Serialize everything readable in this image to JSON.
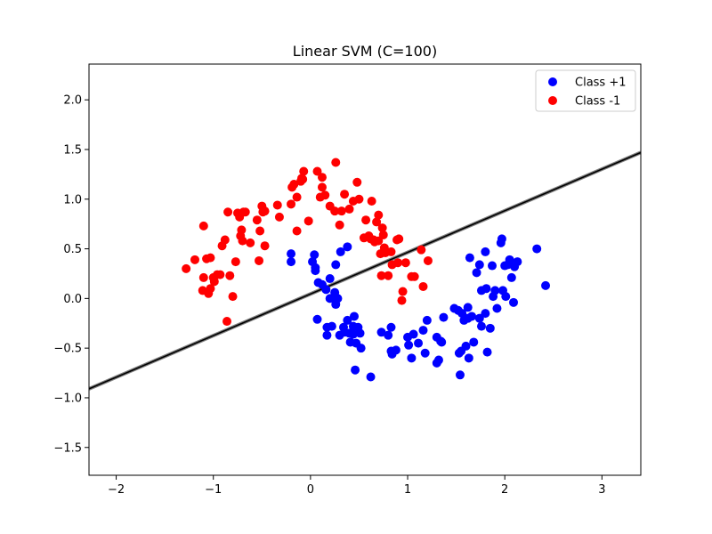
{
  "chart_data": {
    "type": "scatter",
    "title": "Linear SVM (C=100)",
    "xlabel": "",
    "ylabel": "",
    "xlim": [
      -2.28,
      3.4
    ],
    "ylim": [
      -1.78,
      2.36
    ],
    "xticks": [
      -2,
      -1,
      0,
      1,
      2,
      3
    ],
    "yticks": [
      -1.5,
      -1.0,
      -0.5,
      0.0,
      0.5,
      1.0,
      1.5,
      2.0
    ],
    "xtick_labels": [
      "−2",
      "−1",
      "0",
      "1",
      "2",
      "3"
    ],
    "ytick_labels": [
      "−1.5",
      "−1.0",
      "−0.5",
      "0.0",
      "0.5",
      "1.0",
      "1.5",
      "2.0"
    ],
    "grid": false,
    "legend_position": "top-right",
    "decision_boundary": {
      "label": "",
      "color": "#000000",
      "points": [
        [
          -2.28,
          -0.91
        ],
        [
          3.4,
          1.47
        ]
      ]
    },
    "series": [
      {
        "name": "Class +1",
        "color": "#0000ff",
        "points": [
          [
            -0.2,
            0.45
          ],
          [
            -0.2,
            0.37
          ],
          [
            0.02,
            0.37
          ],
          [
            0.04,
            0.44
          ],
          [
            0.05,
            0.31
          ],
          [
            0.05,
            0.28
          ],
          [
            0.08,
            0.16
          ],
          [
            0.12,
            0.14
          ],
          [
            0.16,
            0.09
          ],
          [
            0.2,
            0.2
          ],
          [
            0.25,
            0.06
          ],
          [
            0.26,
            0.34
          ],
          [
            0.31,
            0.47
          ],
          [
            0.38,
            0.52
          ],
          [
            0.07,
            -0.21
          ],
          [
            0.17,
            -0.29
          ],
          [
            0.17,
            -0.37
          ],
          [
            0.2,
            0.0
          ],
          [
            0.22,
            -0.28
          ],
          [
            0.26,
            -0.06
          ],
          [
            0.28,
            0.0
          ],
          [
            0.3,
            -0.37
          ],
          [
            0.34,
            -0.29
          ],
          [
            0.35,
            -0.34
          ],
          [
            0.38,
            -0.22
          ],
          [
            0.4,
            -0.35
          ],
          [
            0.41,
            -0.44
          ],
          [
            0.44,
            -0.28
          ],
          [
            0.44,
            -0.36
          ],
          [
            0.45,
            -0.18
          ],
          [
            0.46,
            -0.72
          ],
          [
            0.47,
            -0.45
          ],
          [
            0.49,
            -0.29
          ],
          [
            0.52,
            -0.5
          ],
          [
            0.51,
            -0.35
          ],
          [
            0.62,
            -0.79
          ],
          [
            0.73,
            -0.34
          ],
          [
            0.8,
            -0.37
          ],
          [
            0.83,
            -0.53
          ],
          [
            0.83,
            -0.29
          ],
          [
            0.84,
            -0.56
          ],
          [
            0.88,
            -0.52
          ],
          [
            1.0,
            -0.39
          ],
          [
            1.01,
            -0.47
          ],
          [
            1.04,
            -0.6
          ],
          [
            1.06,
            -0.36
          ],
          [
            1.11,
            -0.45
          ],
          [
            1.16,
            -0.32
          ],
          [
            1.18,
            -0.55
          ],
          [
            1.2,
            -0.22
          ],
          [
            1.3,
            -0.39
          ],
          [
            1.3,
            -0.65
          ],
          [
            1.32,
            -0.62
          ],
          [
            1.34,
            -0.43
          ],
          [
            1.35,
            -0.44
          ],
          [
            1.37,
            -0.19
          ],
          [
            1.48,
            -0.1
          ],
          [
            1.52,
            -0.12
          ],
          [
            1.53,
            -0.55
          ],
          [
            1.54,
            -0.77
          ],
          [
            1.55,
            -0.53
          ],
          [
            1.56,
            -0.15
          ],
          [
            1.58,
            -0.22
          ],
          [
            1.6,
            -0.48
          ],
          [
            1.62,
            -0.09
          ],
          [
            1.62,
            -0.2
          ],
          [
            1.63,
            -0.6
          ],
          [
            1.64,
            0.41
          ],
          [
            1.66,
            -0.18
          ],
          [
            1.68,
            -0.44
          ],
          [
            1.71,
            0.26
          ],
          [
            1.74,
            0.34
          ],
          [
            1.76,
            -0.28
          ],
          [
            1.76,
            0.08
          ],
          [
            1.8,
            0.47
          ],
          [
            1.81,
            0.1
          ],
          [
            1.8,
            -0.15
          ],
          [
            1.82,
            -0.54
          ],
          [
            1.85,
            -0.3
          ],
          [
            1.87,
            0.33
          ],
          [
            1.88,
            0.02
          ],
          [
            1.9,
            0.08
          ],
          [
            1.92,
            -0.1
          ],
          [
            1.96,
            0.56
          ],
          [
            1.97,
            0.6
          ],
          [
            1.98,
            0.08
          ],
          [
            2.0,
            0.33
          ],
          [
            2.01,
            0.02
          ],
          [
            2.05,
            0.39
          ],
          [
            2.07,
            0.21
          ],
          [
            2.09,
            -0.04
          ],
          [
            2.1,
            0.32
          ],
          [
            2.13,
            0.37
          ],
          [
            2.33,
            0.5
          ],
          [
            2.42,
            0.13
          ],
          [
            1.74,
            -0.2
          ],
          [
            2.03,
            0.34
          ]
        ]
      },
      {
        "name": "Class -1",
        "color": "#ff0000",
        "points": [
          [
            -1.28,
            0.3
          ],
          [
            -1.19,
            0.39
          ],
          [
            -1.11,
            0.08
          ],
          [
            -1.1,
            0.21
          ],
          [
            -1.1,
            0.73
          ],
          [
            -1.07,
            0.4
          ],
          [
            -1.05,
            0.05
          ],
          [
            -1.03,
            0.41
          ],
          [
            -1.03,
            0.1
          ],
          [
            -1.0,
            0.21
          ],
          [
            -0.99,
            0.17
          ],
          [
            -0.96,
            0.24
          ],
          [
            -0.93,
            0.24
          ],
          [
            -0.91,
            0.53
          ],
          [
            -0.88,
            0.59
          ],
          [
            -0.85,
            0.87
          ],
          [
            -0.83,
            0.23
          ],
          [
            -0.8,
            0.02
          ],
          [
            -0.77,
            0.37
          ],
          [
            -0.75,
            0.86
          ],
          [
            -0.73,
            0.82
          ],
          [
            -0.72,
            0.63
          ],
          [
            -0.71,
            0.69
          ],
          [
            -0.7,
            0.58
          ],
          [
            -0.69,
            0.87
          ],
          [
            -0.67,
            0.87
          ],
          [
            -0.62,
            0.56
          ],
          [
            -0.55,
            0.79
          ],
          [
            -0.53,
            0.38
          ],
          [
            -0.52,
            0.68
          ],
          [
            -0.5,
            0.93
          ],
          [
            -0.49,
            0.87
          ],
          [
            -0.47,
            0.88
          ],
          [
            -0.47,
            0.53
          ],
          [
            -0.34,
            0.94
          ],
          [
            -0.32,
            0.82
          ],
          [
            -0.2,
            0.95
          ],
          [
            -0.19,
            1.12
          ],
          [
            -0.17,
            1.15
          ],
          [
            -0.14,
            1.02
          ],
          [
            -0.14,
            0.68
          ],
          [
            -0.1,
            1.18
          ],
          [
            -0.08,
            1.2
          ],
          [
            -0.07,
            1.28
          ],
          [
            -0.02,
            0.78
          ],
          [
            0.07,
            1.28
          ],
          [
            0.1,
            1.02
          ],
          [
            0.12,
            1.22
          ],
          [
            0.12,
            1.12
          ],
          [
            0.15,
            1.04
          ],
          [
            0.2,
            0.93
          ],
          [
            0.25,
            0.88
          ],
          [
            0.26,
            1.37
          ],
          [
            0.3,
            0.74
          ],
          [
            0.32,
            0.88
          ],
          [
            0.35,
            1.05
          ],
          [
            0.4,
            0.9
          ],
          [
            0.44,
            0.98
          ],
          [
            0.48,
            1.17
          ],
          [
            0.5,
            1.0
          ],
          [
            0.55,
            0.61
          ],
          [
            0.57,
            0.79
          ],
          [
            0.6,
            0.63
          ],
          [
            0.62,
            0.6
          ],
          [
            0.63,
            0.98
          ],
          [
            0.65,
            0.59
          ],
          [
            0.66,
            0.57
          ],
          [
            0.68,
            0.77
          ],
          [
            0.7,
            0.58
          ],
          [
            0.7,
            0.84
          ],
          [
            0.72,
            0.45
          ],
          [
            0.73,
            0.23
          ],
          [
            0.74,
            0.71
          ],
          [
            0.75,
            0.64
          ],
          [
            0.76,
            0.51
          ],
          [
            0.77,
            0.46
          ],
          [
            0.8,
            0.23
          ],
          [
            0.83,
            0.47
          ],
          [
            0.89,
            0.59
          ],
          [
            0.9,
            0.36
          ],
          [
            0.91,
            0.6
          ],
          [
            0.94,
            -0.02
          ],
          [
            0.95,
            0.07
          ],
          [
            0.98,
            0.36
          ],
          [
            1.04,
            0.22
          ],
          [
            1.07,
            0.22
          ],
          [
            1.14,
            0.49
          ],
          [
            1.16,
            0.12
          ],
          [
            1.21,
            0.38
          ],
          [
            -0.86,
            -0.23
          ],
          [
            0.84,
            0.34
          ],
          [
            -0.09,
            1.21
          ]
        ]
      }
    ]
  }
}
